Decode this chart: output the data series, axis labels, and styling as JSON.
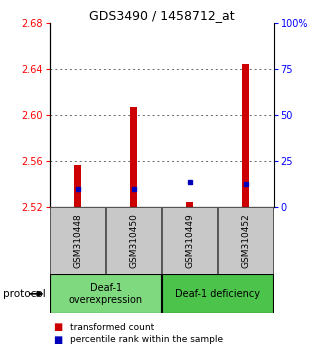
{
  "title": "GDS3490 / 1458712_at",
  "samples": [
    "GSM310448",
    "GSM310450",
    "GSM310449",
    "GSM310452"
  ],
  "red_values": [
    2.557,
    2.607,
    2.524,
    2.644
  ],
  "blue_values": [
    2.536,
    2.536,
    2.542,
    2.54
  ],
  "red_base": 2.52,
  "ylim": [
    2.52,
    2.68
  ],
  "yticks_left": [
    2.52,
    2.56,
    2.6,
    2.64,
    2.68
  ],
  "yticks_right": [
    0,
    25,
    50,
    75,
    100
  ],
  "ytick_right_labels": [
    "0",
    "25",
    "50",
    "75",
    "100%"
  ],
  "groups": [
    {
      "label": "Deaf-1\noverexpression",
      "color": "#7FD97F"
    },
    {
      "label": "Deaf-1 deficiency",
      "color": "#4CC44C"
    }
  ],
  "protocol_label": "protocol",
  "legend_red_label": "transformed count",
  "legend_blue_label": "percentile rank within the sample",
  "bar_width": 0.12,
  "red_color": "#CC0000",
  "blue_color": "#0000BB",
  "grid_color": "#666666",
  "sample_bg_color": "#C8C8C8",
  "sample_box_color": "#555555"
}
